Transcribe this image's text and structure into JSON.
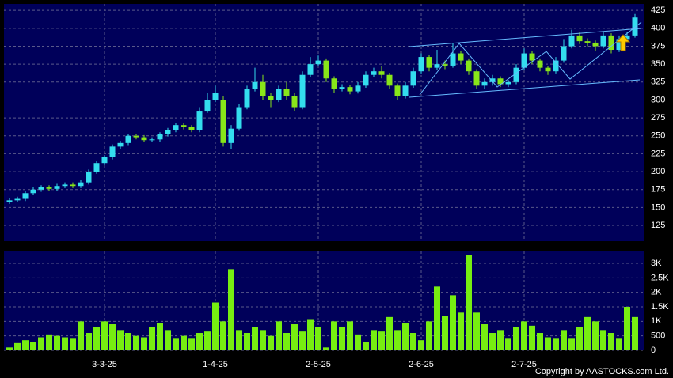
{
  "chart_data": {
    "type": "candlestick",
    "categories": [
      null,
      null,
      null,
      null,
      null,
      null,
      null,
      null,
      null,
      null,
      null,
      null,
      "3-3-25",
      null,
      null,
      null,
      null,
      null,
      null,
      null,
      null,
      null,
      null,
      null,
      null,
      null,
      "1-4-25",
      null,
      null,
      null,
      null,
      null,
      null,
      null,
      null,
      null,
      null,
      null,
      null,
      "2-5-25",
      null,
      null,
      null,
      null,
      null,
      null,
      null,
      null,
      null,
      null,
      null,
      null,
      "2-6-25",
      null,
      null,
      null,
      null,
      null,
      null,
      null,
      null,
      null,
      null,
      null,
      null,
      "2-7-25",
      null,
      null,
      null,
      null,
      null,
      null,
      null,
      null,
      null,
      null,
      null,
      null,
      null,
      null
    ],
    "open": [
      158,
      160,
      162,
      170,
      175,
      178,
      176,
      180,
      182,
      180,
      185,
      200,
      212,
      220,
      235,
      240,
      250,
      248,
      244,
      245,
      252,
      258,
      265,
      262,
      258,
      285,
      300,
      300,
      240,
      260,
      290,
      315,
      325,
      305,
      300,
      315,
      305,
      290,
      335,
      350,
      355,
      330,
      315,
      318,
      312,
      320,
      335,
      340,
      335,
      320,
      305,
      320,
      340,
      360,
      345,
      350,
      348,
      365,
      355,
      340,
      320,
      325,
      330,
      322,
      325,
      345,
      365,
      355,
      345,
      340,
      355,
      375,
      390,
      382,
      380,
      375,
      390,
      370,
      385,
      390
    ],
    "high": [
      163,
      165,
      173,
      178,
      181,
      181,
      183,
      185,
      185,
      188,
      203,
      215,
      223,
      238,
      243,
      253,
      253,
      251,
      248,
      255,
      261,
      268,
      268,
      265,
      290,
      310,
      320,
      305,
      265,
      295,
      320,
      345,
      335,
      310,
      320,
      325,
      310,
      340,
      360,
      362,
      358,
      333,
      322,
      321,
      325,
      340,
      345,
      348,
      338,
      323,
      325,
      345,
      365,
      363,
      370,
      355,
      380,
      368,
      358,
      343,
      330,
      335,
      333,
      328,
      350,
      372,
      368,
      358,
      348,
      360,
      385,
      398,
      395,
      386,
      383,
      395,
      393,
      390,
      395,
      420
    ],
    "low": [
      155,
      157,
      159,
      167,
      172,
      173,
      173,
      177,
      177,
      177,
      182,
      197,
      209,
      217,
      232,
      237,
      245,
      241,
      241,
      242,
      249,
      255,
      259,
      255,
      255,
      282,
      297,
      235,
      232,
      257,
      287,
      312,
      300,
      290,
      297,
      300,
      285,
      287,
      332,
      347,
      325,
      310,
      312,
      308,
      309,
      317,
      332,
      330,
      315,
      300,
      302,
      317,
      337,
      340,
      342,
      343,
      345,
      350,
      335,
      315,
      316,
      320,
      318,
      318,
      322,
      342,
      350,
      340,
      335,
      337,
      352,
      372,
      378,
      375,
      368,
      372,
      365,
      367,
      382,
      387
    ],
    "close": [
      160,
      162,
      170,
      175,
      178,
      176,
      180,
      182,
      180,
      185,
      200,
      212,
      220,
      235,
      240,
      250,
      248,
      244,
      245,
      252,
      258,
      265,
      262,
      258,
      285,
      300,
      310,
      240,
      260,
      290,
      315,
      325,
      305,
      300,
      315,
      305,
      290,
      335,
      350,
      355,
      330,
      315,
      318,
      312,
      320,
      335,
      340,
      335,
      320,
      305,
      320,
      340,
      360,
      345,
      350,
      348,
      365,
      355,
      340,
      320,
      325,
      330,
      322,
      325,
      345,
      365,
      355,
      345,
      340,
      355,
      375,
      390,
      382,
      380,
      375,
      390,
      370,
      385,
      390,
      415
    ],
    "volume": [
      100,
      250,
      350,
      300,
      450,
      550,
      500,
      450,
      400,
      1000,
      600,
      800,
      1000,
      900,
      700,
      600,
      500,
      450,
      800,
      950,
      700,
      400,
      500,
      400,
      600,
      650,
      1650,
      1000,
      2800,
      700,
      600,
      800,
      700,
      500,
      1000,
      600,
      900,
      650,
      1050,
      800,
      100,
      1000,
      800,
      1000,
      550,
      300,
      700,
      650,
      1150,
      700,
      950,
      600,
      350,
      1000,
      2200,
      1200,
      1900,
      1300,
      3300,
      1300,
      900,
      600,
      700,
      400,
      800,
      1000,
      850,
      600,
      450,
      400,
      700,
      400,
      800,
      1150,
      1000,
      700,
      600,
      400,
      1500,
      1150
    ],
    "ylim": [
      103,
      434
    ],
    "yticks": [
      125,
      150,
      175,
      200,
      225,
      250,
      275,
      300,
      325,
      350,
      375,
      400,
      425
    ],
    "volume_ylim": [
      0,
      3410
    ],
    "volume_yticks": [
      0,
      500,
      {
        "value": 1000,
        "label": "1K"
      },
      {
        "value": 1500,
        "label": "1.5K"
      },
      {
        "value": 2000,
        "label": "2K"
      },
      {
        "value": 2500,
        "label": "2.5K"
      },
      {
        "value": 3000,
        "label": "3K"
      }
    ],
    "up_color": "#33ddee",
    "down_color": "#88e619",
    "volume_color": "#77ee11",
    "grid": true
  },
  "footer": {
    "copyright": "Copyright by AASTOCKS.com Ltd."
  }
}
